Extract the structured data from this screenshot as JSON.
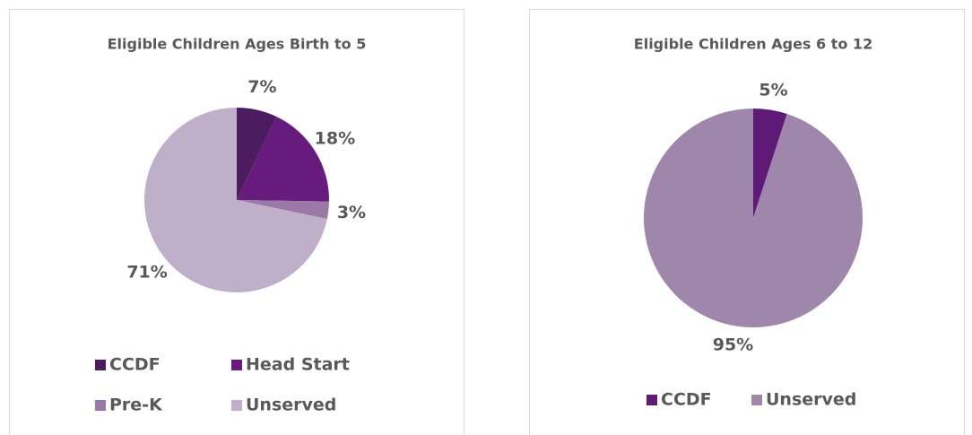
{
  "chart_data": [
    {
      "type": "pie",
      "title": "Eligible Children Ages Birth to 5",
      "categories": [
        "CCDF",
        "Head Start",
        "Pre-K",
        "Unserved"
      ],
      "values": [
        7,
        18,
        3,
        71
      ],
      "value_labels": [
        "7%",
        "18%",
        "3%",
        "71%"
      ],
      "colors": [
        "#4b1c5e",
        "#671c7d",
        "#9a78a8",
        "#c0afc9"
      ]
    },
    {
      "type": "pie",
      "title": "Eligible Children Ages 6 to 12",
      "categories": [
        "CCDF",
        "Unserved"
      ],
      "values": [
        5,
        95
      ],
      "value_labels": [
        "5%",
        "95%"
      ],
      "colors": [
        "#5f1a78",
        "#9e87ab"
      ]
    }
  ]
}
